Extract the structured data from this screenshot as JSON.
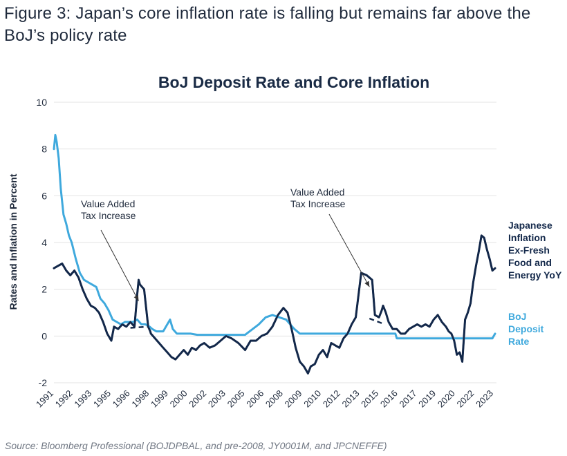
{
  "figure_title": "Figure 3: Japan’s core inflation rate is falling but remains far above the BoJ’s policy rate",
  "source": "Source: Bloomberg Professional (BOJDPBAL, and pre-2008, JY0001M, and JPCNEFFE)",
  "colors": {
    "inflation": "#13284a",
    "deposit": "#3fa9dd",
    "grid": "#e3e3e3",
    "text": "#1f2a3c"
  },
  "chart_data": {
    "type": "line",
    "title": "BoJ Deposit Rate and Core Inflation",
    "xlabel": "",
    "ylabel": "Rates and Inflation in Percent",
    "ylim": [
      -2,
      10
    ],
    "yticks": [
      -2,
      0,
      2,
      4,
      6,
      8,
      10
    ],
    "xlim": [
      1991,
      2023.4
    ],
    "xtick_labels": [
      "1991",
      "1992",
      "1993",
      "1995",
      "1996",
      "1998",
      "1999",
      "2000",
      "2002",
      "2003",
      "2005",
      "2006",
      "2008",
      "2009",
      "2010",
      "2012",
      "2013",
      "2015",
      "2016",
      "2017",
      "2019",
      "2020",
      "2022",
      "2023"
    ],
    "xtick_values": [
      1991,
      1992.4,
      1993.8,
      1995.2,
      1996.6,
      1998,
      1999.4,
      2000.8,
      2002.2,
      2003.6,
      2005,
      2006.4,
      2007.8,
      2009.2,
      2010.6,
      2012,
      2013.4,
      2014.8,
      2016.2,
      2017.6,
      2019,
      2020.4,
      2021.8,
      2023.2
    ],
    "grid": true,
    "legend": "right, as direct labels",
    "annotations": [
      {
        "text": [
          "Value Added",
          "Tax Increase"
        ],
        "points_to": {
          "x": 1997.2,
          "y": 1.5
        }
      },
      {
        "text": [
          "Value Added",
          "Tax Increase"
        ],
        "points_to": {
          "x": 2014.1,
          "y": 2.1
        }
      }
    ],
    "series": [
      {
        "name": "Japanese Inflation Ex-Fresh Food and Energy YoY",
        "label_lines": [
          "Japanese",
          "Inflation",
          "Ex-Fresh",
          "Food and",
          "Energy YoY"
        ],
        "x": [
          1991.0,
          1991.3,
          1991.6,
          1991.9,
          1992.2,
          1992.5,
          1992.8,
          1993.1,
          1993.4,
          1993.7,
          1994.0,
          1994.3,
          1994.6,
          1994.9,
          1995.2,
          1995.4,
          1995.7,
          1996.0,
          1996.3,
          1996.6,
          1996.9,
          1997.1,
          1997.2,
          1997.3,
          1997.6,
          1997.9,
          1998.05,
          1998.1,
          1998.4,
          1998.7,
          1999.0,
          1999.3,
          1999.6,
          1999.9,
          2000.2,
          2000.5,
          2000.8,
          2001.1,
          2001.4,
          2001.7,
          2002.0,
          2002.4,
          2002.8,
          2003.2,
          2003.6,
          2004.0,
          2004.5,
          2005.0,
          2005.4,
          2005.8,
          2006.2,
          2006.6,
          2007.0,
          2007.4,
          2007.8,
          2008.1,
          2008.4,
          2008.7,
          2009.0,
          2009.3,
          2009.6,
          2009.8,
          2010.1,
          2010.4,
          2010.7,
          2011.0,
          2011.3,
          2011.6,
          2011.9,
          2012.2,
          2012.5,
          2012.8,
          2013.1,
          2013.5,
          2013.9,
          2014.1,
          2014.3,
          2014.5,
          2014.8,
          2015.0,
          2015.1,
          2015.3,
          2015.5,
          2015.8,
          2016.1,
          2016.4,
          2016.7,
          2017.0,
          2017.3,
          2017.6,
          2017.9,
          2018.2,
          2018.5,
          2018.8,
          2019.1,
          2019.4,
          2019.7,
          2019.9,
          2020.1,
          2020.3,
          2020.5,
          2020.7,
          2020.9,
          2021.1,
          2021.3,
          2021.5,
          2021.7,
          2021.9,
          2022.1,
          2022.3,
          2022.5,
          2022.7,
          2022.9,
          2023.1,
          2023.3
        ],
        "values": [
          2.9,
          3.0,
          3.1,
          2.8,
          2.6,
          2.8,
          2.5,
          2.0,
          1.6,
          1.3,
          1.2,
          1.0,
          0.6,
          0.1,
          -0.2,
          0.4,
          0.3,
          0.5,
          0.4,
          0.6,
          0.4,
          1.8,
          2.4,
          2.2,
          2.0,
          0.4,
          0.2,
          0.1,
          -0.1,
          -0.3,
          -0.5,
          -0.7,
          -0.9,
          -1.0,
          -0.8,
          -0.6,
          -0.8,
          -0.5,
          -0.6,
          -0.4,
          -0.3,
          -0.5,
          -0.4,
          -0.2,
          0.0,
          -0.1,
          -0.3,
          -0.6,
          -0.2,
          -0.2,
          0.0,
          0.1,
          0.4,
          0.9,
          1.2,
          1.0,
          0.3,
          -0.5,
          -1.1,
          -1.3,
          -1.6,
          -1.3,
          -1.2,
          -0.8,
          -0.6,
          -0.9,
          -0.3,
          -0.4,
          -0.5,
          -0.1,
          0.1,
          0.5,
          0.8,
          2.7,
          2.6,
          2.5,
          2.4,
          0.9,
          0.8,
          1.1,
          1.3,
          1.0,
          0.6,
          0.3,
          0.3,
          0.1,
          0.1,
          0.3,
          0.4,
          0.5,
          0.4,
          0.5,
          0.4,
          0.7,
          0.9,
          0.6,
          0.4,
          0.2,
          0.1,
          -0.2,
          -0.8,
          -0.7,
          -1.1,
          0.7,
          1.0,
          1.4,
          2.3,
          3.0,
          3.6,
          4.3,
          4.2,
          3.7,
          3.3,
          2.8,
          2.9
        ]
      },
      {
        "name": "BoJ Deposit Rate",
        "label_lines": [
          "BoJ",
          "Deposit",
          "Rate"
        ],
        "x": [
          1991.0,
          1991.1,
          1991.2,
          1991.35,
          1991.5,
          1991.7,
          1991.9,
          1992.1,
          1992.3,
          1992.6,
          1992.9,
          1993.2,
          1993.5,
          1993.8,
          1994.1,
          1994.4,
          1994.7,
          1995.0,
          1995.3,
          1995.6,
          1995.9,
          1996.2,
          1996.5,
          1996.8,
          1997.1,
          1997.4,
          1997.7,
          1998.0,
          1998.2,
          1998.5,
          1999.0,
          1999.5,
          1999.7,
          2000.0,
          2001.0,
          2001.5,
          2002.0,
          2003.0,
          2004.0,
          2005.0,
          2006.0,
          2006.5,
          2007.0,
          2007.5,
          2008.0,
          2008.3,
          2008.6,
          2009.0,
          2010.0,
          2012.0,
          2014.0,
          2016.0,
          2016.1,
          2018.0,
          2020.0,
          2022.0,
          2023.1,
          2023.3
        ],
        "values": [
          8.0,
          8.6,
          8.3,
          7.6,
          6.3,
          5.2,
          4.8,
          4.3,
          4.0,
          3.3,
          2.7,
          2.4,
          2.3,
          2.2,
          2.1,
          1.6,
          1.4,
          1.1,
          0.7,
          0.6,
          0.5,
          0.6,
          0.6,
          0.6,
          0.7,
          0.5,
          0.5,
          0.4,
          0.3,
          0.2,
          0.2,
          0.7,
          0.3,
          0.1,
          0.1,
          0.05,
          0.05,
          0.05,
          0.05,
          0.05,
          0.5,
          0.8,
          0.9,
          0.8,
          0.7,
          0.5,
          0.3,
          0.1,
          0.1,
          0.1,
          0.1,
          0.1,
          -0.1,
          -0.1,
          -0.1,
          -0.1,
          -0.1,
          0.1
        ]
      }
    ],
    "dashed_connectors": [
      {
        "series": "Japanese Inflation Ex-Fresh Food and Energy YoY",
        "x": [
          1996.6,
          1997.9
        ],
        "values": [
          0.35,
          0.4
        ]
      },
      {
        "series": "Japanese Inflation Ex-Fresh Food and Energy YoY",
        "x": [
          2014.1,
          2015.0
        ],
        "values": [
          0.75,
          0.55
        ]
      }
    ]
  }
}
